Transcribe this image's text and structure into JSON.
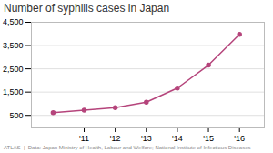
{
  "chart_data": {
    "type": "line",
    "title": "Number of syphilis cases in Japan",
    "caption": "ATLAS  |  Data: Japan Ministry of Health, Labour and Welfare; National Institute of Infectious Diseases",
    "x": [
      2010,
      2011,
      2012,
      2013,
      2014,
      2015,
      2016
    ],
    "values": [
      621,
      721,
      835,
      1065,
      1673,
      2660,
      3985
    ],
    "color": "#b5447b",
    "marker": "circle",
    "xlim": [
      2009.3,
      2016.8
    ],
    "xticks": [
      {
        "value": 2011,
        "label": "'11"
      },
      {
        "value": 2012,
        "label": "'12"
      },
      {
        "value": 2013,
        "label": "'13"
      },
      {
        "value": 2014,
        "label": "'14"
      },
      {
        "value": 2015,
        "label": "'15"
      },
      {
        "value": 2016,
        "label": "'16"
      }
    ],
    "ylim": [
      0,
      4500
    ],
    "yticks": [
      500,
      {
        "value": 1500,
        "label": "1,500"
      },
      {
        "value": 2500,
        "label": "2,500"
      },
      {
        "value": 3500,
        "label": "3,500"
      },
      {
        "value": 4500,
        "label": "4,500"
      }
    ],
    "grid": true
  }
}
